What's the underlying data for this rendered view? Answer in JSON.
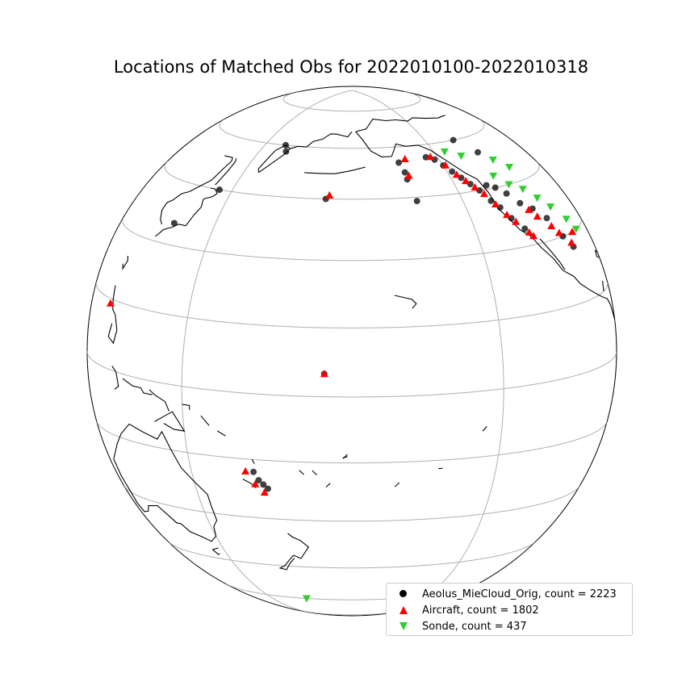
{
  "title": "Locations of Matched Obs for 2022010100-2022010318",
  "colors": {
    "aeolus": "#000000",
    "aircraft": "#ff0000",
    "sonde": "#32cd32",
    "gridlines": "#b0b0b0",
    "coastline": "#000000"
  },
  "legend": {
    "items": [
      {
        "label": "Aeolus_MieCloud_Orig, count = 2223",
        "marker": "circle",
        "color": "#000000"
      },
      {
        "label": "Aircraft, count = 1802",
        "marker": "triangle-up",
        "color": "#ff0000"
      },
      {
        "label": "Sonde, count = 437",
        "marker": "triangle-down",
        "color": "#32cd32"
      }
    ]
  },
  "chart_data": {
    "type": "scatter",
    "title": "Locations of Matched Obs for 2022010100-2022010318",
    "projection": "orthographic",
    "projection_center": {
      "lon": -170,
      "lat": 10
    },
    "gridlines": true,
    "legend_position": "bottom-right",
    "series": [
      {
        "name": "Aeolus_MieCloud_Orig, count = 2223",
        "marker": "circle",
        "points": [
          [
            -178,
            45
          ],
          [
            -152,
            55
          ],
          [
            -151,
            52
          ],
          [
            -151,
            50
          ],
          [
            -150,
            44
          ],
          [
            -140,
            56
          ],
          [
            -137,
            55
          ],
          [
            -135,
            53
          ],
          [
            -133,
            51
          ],
          [
            -131,
            49
          ],
          [
            -129,
            47
          ],
          [
            -127,
            45
          ],
          [
            -125,
            42
          ],
          [
            -123,
            40
          ],
          [
            -121,
            37
          ],
          [
            -118,
            34
          ],
          [
            -123,
            46
          ],
          [
            -120,
            45
          ],
          [
            -117,
            43
          ],
          [
            -114,
            40
          ],
          [
            -110,
            38
          ],
          [
            -106,
            35
          ],
          [
            -103,
            30
          ],
          [
            -100,
            27
          ],
          [
            -120,
            60
          ],
          [
            -114,
            55
          ],
          [
            -176,
            5
          ],
          [
            167,
            -18
          ],
          [
            168,
            -20
          ],
          [
            169,
            -21
          ],
          [
            170,
            -22
          ],
          [
            135,
            35
          ],
          [
            145,
            45
          ],
          [
            162,
            58
          ],
          [
            160,
            60
          ]
        ]
      },
      {
        "name": "Aircraft, count = 1802",
        "marker": "triangle-up",
        "points": [
          [
            -177,
            46
          ],
          [
            -149,
            56
          ],
          [
            -150,
            51
          ],
          [
            -138,
            56
          ],
          [
            -134,
            53
          ],
          [
            -132,
            50
          ],
          [
            -130,
            48
          ],
          [
            -128,
            46
          ],
          [
            -126,
            44
          ],
          [
            -124,
            41
          ],
          [
            -122,
            38
          ],
          [
            -120,
            36
          ],
          [
            -117,
            33
          ],
          [
            -116,
            32
          ],
          [
            -112,
            38
          ],
          [
            -110,
            36
          ],
          [
            -106,
            33
          ],
          [
            -104,
            31
          ],
          [
            -100,
            28
          ],
          [
            165,
            -18
          ],
          [
            167,
            -21
          ],
          [
            169,
            -23
          ],
          [
            120,
            14
          ],
          [
            -176,
            5
          ],
          [
            -96,
            30
          ]
        ]
      },
      {
        "name": "Sonde, count = 437",
        "marker": "triangle-down",
        "points": [
          [
            -130,
            57
          ],
          [
            -124,
            55
          ],
          [
            -117,
            48
          ],
          [
            -113,
            45
          ],
          [
            -108,
            43
          ],
          [
            -104,
            40
          ],
          [
            -100,
            37
          ],
          [
            -95,
            33
          ],
          [
            -92,
            30
          ],
          [
            -110,
            52
          ],
          [
            -105,
            49
          ],
          [
            170,
            -60
          ]
        ]
      }
    ]
  }
}
